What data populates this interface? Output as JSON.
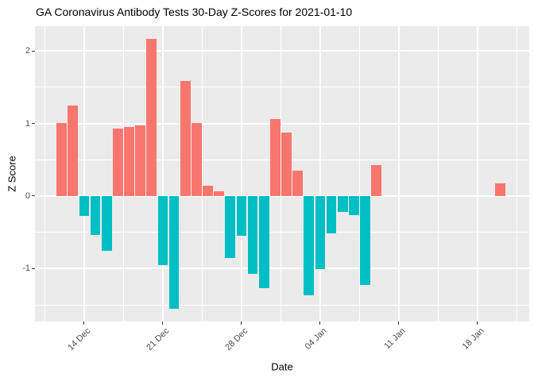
{
  "chart_data": {
    "type": "bar",
    "title": "GA Coronavirus Antibody Tests 30-Day Z-Scores for 2021-01-10",
    "xlabel": "Date",
    "ylabel": "Z Score",
    "legend_position": "none",
    "grid": "on",
    "panel_bg": "#EBEBEB",
    "grid_color": "#FFFFFF",
    "axis_text_color": "#4D4D4D",
    "tick_mark_color": "#333333",
    "bar_colors": {
      "positive": "#F8766D",
      "negative": "#00BFC4"
    },
    "x_range_days": [
      -2.38,
      41.6
    ],
    "ylim": [
      -1.73,
      2.34
    ],
    "y_ticks": [
      {
        "label": "2",
        "value": 2
      },
      {
        "label": "1",
        "value": 1
      },
      {
        "label": "0",
        "value": 0
      },
      {
        "label": "-1",
        "value": -1
      }
    ],
    "y_minor": [
      1.5,
      0.5,
      -0.5,
      -1.5
    ],
    "x_ticks": [
      {
        "label": "14 Dec",
        "day": 2
      },
      {
        "label": "21 Dec",
        "day": 9
      },
      {
        "label": "28 Dec",
        "day": 16
      },
      {
        "label": "04 Jan",
        "day": 23
      },
      {
        "label": "11 Jan",
        "day": 30
      },
      {
        "label": "18 Jan",
        "day": 37
      }
    ],
    "x_minor_days": [
      -1.5,
      5.5,
      12.5,
      19.5,
      26.5,
      33.5,
      40.5
    ],
    "bars": [
      {
        "date": "12 Dec",
        "day": 0,
        "value": 1.01
      },
      {
        "date": "13 Dec",
        "day": 1,
        "value": 1.25
      },
      {
        "date": "14 Dec",
        "day": 2,
        "value": -0.27
      },
      {
        "date": "15 Dec",
        "day": 3,
        "value": -0.54
      },
      {
        "date": "16 Dec",
        "day": 4,
        "value": -0.76
      },
      {
        "date": "17 Dec",
        "day": 5,
        "value": 0.93
      },
      {
        "date": "18 Dec",
        "day": 6,
        "value": 0.95
      },
      {
        "date": "19 Dec",
        "day": 7,
        "value": 0.97
      },
      {
        "date": "20 Dec",
        "day": 8,
        "value": 2.17
      },
      {
        "date": "21 Dec",
        "day": 9,
        "value": -0.95
      },
      {
        "date": "22 Dec",
        "day": 10,
        "value": -1.55
      },
      {
        "date": "23 Dec",
        "day": 11,
        "value": 1.59
      },
      {
        "date": "24 Dec",
        "day": 12,
        "value": 1.01
      },
      {
        "date": "25 Dec",
        "day": 13,
        "value": 0.14
      },
      {
        "date": "26 Dec",
        "day": 14,
        "value": 0.07
      },
      {
        "date": "27 Dec",
        "day": 15,
        "value": -0.85
      },
      {
        "date": "28 Dec",
        "day": 16,
        "value": -0.55
      },
      {
        "date": "29 Dec",
        "day": 17,
        "value": -1.07
      },
      {
        "date": "30 Dec",
        "day": 18,
        "value": -1.27
      },
      {
        "date": "31 Dec",
        "day": 19,
        "value": 1.06
      },
      {
        "date": "01 Jan",
        "day": 20,
        "value": 0.87
      },
      {
        "date": "02 Jan",
        "day": 21,
        "value": 0.35
      },
      {
        "date": "03 Jan",
        "day": 22,
        "value": -1.37
      },
      {
        "date": "04 Jan",
        "day": 23,
        "value": -1.01
      },
      {
        "date": "05 Jan",
        "day": 24,
        "value": -0.52
      },
      {
        "date": "06 Jan",
        "day": 25,
        "value": -0.22
      },
      {
        "date": "07 Jan",
        "day": 26,
        "value": -0.26
      },
      {
        "date": "08 Jan",
        "day": 27,
        "value": -1.23
      },
      {
        "date": "09 Jan",
        "day": 28,
        "value": 0.43
      },
      {
        "date": "20 Jan",
        "day": 39,
        "value": 0.17
      }
    ]
  }
}
